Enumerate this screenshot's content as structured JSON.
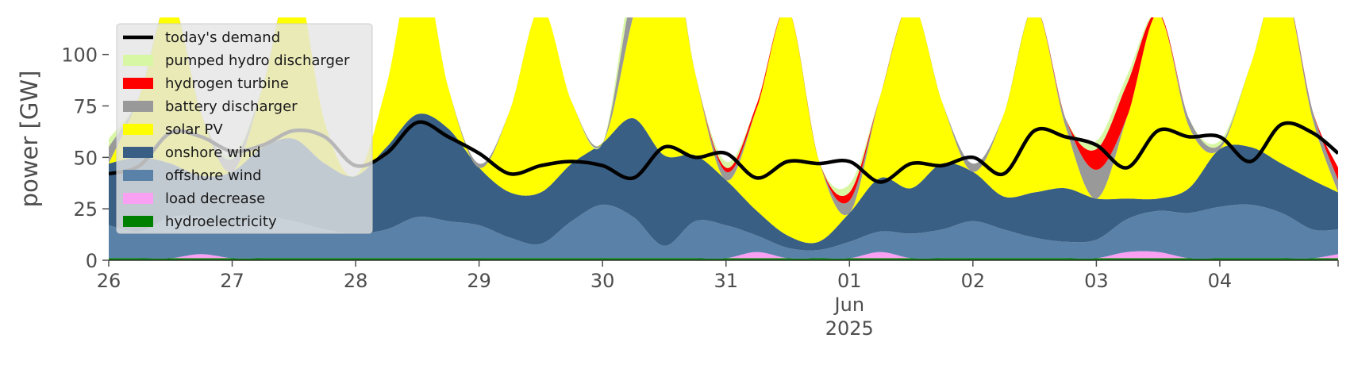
{
  "chart_data": {
    "type": "area",
    "title": "",
    "xlabel": "",
    "ylabel": "power [GW]",
    "ylim": [
      0,
      118
    ],
    "xlim": [
      "2025-05-26",
      "2025-06-04 23:00"
    ],
    "yticks": [
      0,
      25,
      50,
      75,
      100
    ],
    "grid": false,
    "legend_position": "top-left",
    "x_ticks": [
      {
        "date": "2025-05-26",
        "label": "26"
      },
      {
        "date": "2025-05-27",
        "label": "27"
      },
      {
        "date": "2025-05-28",
        "label": "28"
      },
      {
        "date": "2025-05-29",
        "label": "29"
      },
      {
        "date": "2025-05-30",
        "label": "30"
      },
      {
        "date": "2025-05-31",
        "label": "31"
      },
      {
        "date": "2025-06-01",
        "label": "01",
        "sublabel1": "Jun",
        "sublabel2": "2025"
      },
      {
        "date": "2025-06-02",
        "label": "02"
      },
      {
        "date": "2025-06-03",
        "label": "03"
      },
      {
        "date": "2025-06-04",
        "label": "04"
      }
    ],
    "x": [
      "2025-05-26 00:00",
      "2025-05-26 06:00",
      "2025-05-26 12:00",
      "2025-05-26 18:00",
      "2025-05-27 00:00",
      "2025-05-27 06:00",
      "2025-05-27 12:00",
      "2025-05-27 18:00",
      "2025-05-28 00:00",
      "2025-05-28 06:00",
      "2025-05-28 12:00",
      "2025-05-28 18:00",
      "2025-05-29 00:00",
      "2025-05-29 06:00",
      "2025-05-29 12:00",
      "2025-05-29 18:00",
      "2025-05-30 00:00",
      "2025-05-30 06:00",
      "2025-05-30 12:00",
      "2025-05-30 18:00",
      "2025-05-31 00:00",
      "2025-05-31 06:00",
      "2025-05-31 12:00",
      "2025-05-31 18:00",
      "2025-06-01 00:00",
      "2025-06-01 06:00",
      "2025-06-01 12:00",
      "2025-06-01 18:00",
      "2025-06-02 00:00",
      "2025-06-02 06:00",
      "2025-06-02 12:00",
      "2025-06-02 18:00",
      "2025-06-03 00:00",
      "2025-06-03 06:00",
      "2025-06-03 12:00",
      "2025-06-03 18:00",
      "2025-06-04 00:00",
      "2025-06-04 06:00",
      "2025-06-04 12:00",
      "2025-06-04 18:00",
      "2025-06-04 23:00"
    ],
    "series": [
      {
        "name": "hydroelectricity",
        "color": "#008000",
        "values": [
          1,
          1,
          1,
          1,
          1,
          1,
          1,
          1,
          1,
          1,
          1,
          1,
          1,
          1,
          1,
          1,
          1,
          1,
          1,
          1,
          1,
          1,
          1,
          1,
          1,
          1,
          1,
          1,
          1,
          1,
          1,
          1,
          1,
          1,
          1,
          1,
          1,
          1,
          1,
          1,
          1
        ]
      },
      {
        "name": "load decrease",
        "color": "#f9a0f2",
        "values": [
          0,
          0,
          0,
          2,
          0,
          0,
          0,
          0,
          0,
          0,
          0,
          0,
          0,
          0,
          0,
          0,
          0,
          0,
          0,
          0,
          0,
          3,
          0,
          0,
          0,
          3,
          0,
          0,
          0,
          0,
          0,
          0,
          0,
          3,
          3,
          0,
          0,
          0,
          0,
          0,
          2
        ]
      },
      {
        "name": "offshore wind",
        "color": "#5a82a8",
        "values": [
          16,
          13,
          20,
          18,
          16,
          20,
          18,
          14,
          12,
          14,
          20,
          18,
          16,
          10,
          7,
          18,
          26,
          20,
          6,
          18,
          16,
          8,
          5,
          4,
          8,
          10,
          12,
          14,
          18,
          14,
          10,
          8,
          9,
          16,
          20,
          22,
          25,
          26,
          22,
          14,
          12
        ]
      },
      {
        "name": "onshore wind",
        "color": "#3a5f84",
        "values": [
          30,
          36,
          26,
          20,
          26,
          34,
          40,
          32,
          28,
          40,
          50,
          45,
          28,
          22,
          25,
          28,
          30,
          48,
          44,
          32,
          22,
          12,
          6,
          4,
          14,
          26,
          22,
          32,
          24,
          16,
          22,
          26,
          20,
          10,
          6,
          12,
          28,
          28,
          24,
          24,
          18
        ]
      },
      {
        "name": "solar PV",
        "color": "#ffff00",
        "values": [
          0,
          30,
          80,
          30,
          0,
          30,
          80,
          20,
          0,
          30,
          80,
          20,
          0,
          40,
          90,
          30,
          0,
          50,
          120,
          40,
          0,
          50,
          110,
          40,
          0,
          40,
          90,
          30,
          0,
          40,
          90,
          30,
          0,
          40,
          90,
          30,
          0,
          40,
          90,
          30,
          0
        ]
      },
      {
        "name": "battery discharger",
        "color": "#999999",
        "values": [
          8,
          0,
          0,
          0,
          6,
          0,
          0,
          0,
          0,
          0,
          0,
          0,
          2,
          0,
          0,
          0,
          0,
          14,
          0,
          0,
          4,
          0,
          0,
          0,
          6,
          0,
          0,
          0,
          4,
          0,
          0,
          4,
          14,
          0,
          0,
          4,
          2,
          0,
          0,
          4,
          6
        ]
      },
      {
        "name": "hydrogen turbine",
        "color": "#ff0000",
        "values": [
          0,
          0,
          0,
          0,
          0,
          0,
          0,
          0,
          0,
          0,
          0,
          0,
          0,
          0,
          0,
          0,
          0,
          0,
          0,
          0,
          2,
          2,
          0,
          0,
          4,
          0,
          0,
          0,
          0,
          0,
          0,
          0,
          10,
          16,
          0,
          0,
          0,
          0,
          0,
          0,
          6
        ]
      },
      {
        "name": "pumped hydro discharger",
        "color": "#d8f7a4",
        "values": [
          4,
          0,
          0,
          0,
          2,
          0,
          0,
          0,
          0,
          0,
          0,
          0,
          0,
          0,
          0,
          0,
          0,
          8,
          0,
          0,
          3,
          0,
          0,
          0,
          4,
          0,
          0,
          0,
          0,
          0,
          0,
          0,
          4,
          4,
          0,
          0,
          2,
          0,
          0,
          0,
          0
        ]
      }
    ],
    "demand": {
      "name": "today's demand",
      "color": "#000000",
      "values": [
        42,
        46,
        62,
        60,
        53,
        56,
        63,
        60,
        46,
        52,
        67,
        60,
        52,
        42,
        46,
        48,
        46,
        40,
        55,
        50,
        52,
        40,
        48,
        47,
        48,
        38,
        47,
        46,
        50,
        42,
        63,
        60,
        56,
        45,
        63,
        60,
        60,
        48,
        66,
        62,
        52
      ]
    },
    "legend": [
      {
        "name": "today's demand",
        "color": "#000000",
        "kind": "line"
      },
      {
        "name": "pumped hydro discharger",
        "color": "#d8f7a4",
        "kind": "patch"
      },
      {
        "name": "hydrogen turbine",
        "color": "#ff0000",
        "kind": "patch"
      },
      {
        "name": "battery discharger",
        "color": "#999999",
        "kind": "patch"
      },
      {
        "name": "solar PV",
        "color": "#ffff00",
        "kind": "patch"
      },
      {
        "name": "onshore wind",
        "color": "#3a5f84",
        "kind": "patch"
      },
      {
        "name": "offshore wind",
        "color": "#5a82a8",
        "kind": "patch"
      },
      {
        "name": "load decrease",
        "color": "#f9a0f2",
        "kind": "patch"
      },
      {
        "name": "hydroelectricity",
        "color": "#008000",
        "kind": "patch"
      }
    ]
  }
}
